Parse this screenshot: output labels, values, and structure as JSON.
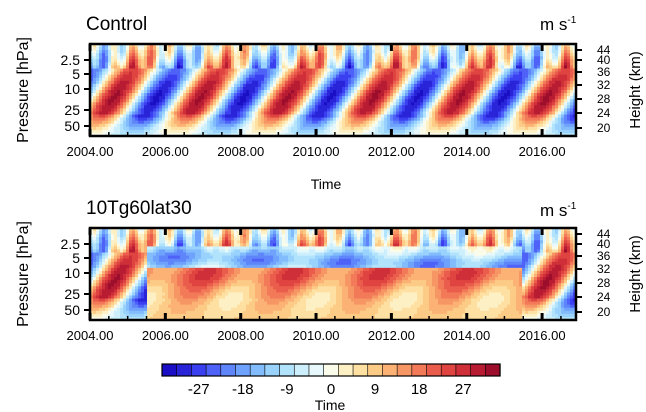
{
  "chart_data": {
    "type": "heatmap",
    "panels": [
      {
        "title": "Control",
        "units": "m s",
        "units_exponent": "-1",
        "xlabel": "Time",
        "ylabel": "Pressure [hPa]",
        "y2label": "Height (km)",
        "xlim": [
          2004.0,
          2016.9
        ],
        "x_ticks": [
          "2004.00",
          "2006.00",
          "2008.00",
          "2010.00",
          "2012.00",
          "2014.00",
          "2016.00"
        ],
        "y_ticks": [
          "2.5",
          "5",
          "10",
          "25",
          "50"
        ],
        "y2_ticks": [
          "44",
          "40",
          "36",
          "32",
          "28",
          "24",
          "20"
        ],
        "qbo_period_years": 2.3,
        "qbo_phase_year": 2005.0,
        "descent_years": 1.6,
        "amplitude": 28
      },
      {
        "title": "10Tg60lat30",
        "units": "m s",
        "units_exponent": "-1",
        "xlabel": "Time",
        "ylabel": "Pressure [hPa]",
        "y2label": "Height (km)",
        "xlim": [
          2004.0,
          2016.9
        ],
        "x_ticks": [
          "2004.00",
          "2006.00",
          "2008.00",
          "2010.00",
          "2012.00",
          "2014.00",
          "2016.00"
        ],
        "y_ticks": [
          "2.5",
          "5",
          "10",
          "25",
          "50"
        ],
        "y2_ticks": [
          "44",
          "40",
          "36",
          "32",
          "28",
          "24",
          "20"
        ],
        "qbo_period_years": 2.3,
        "qbo_phase_year": 2005.0,
        "descent_years": 1.6,
        "amplitude": 28,
        "disrupted_years": [
          2005.5,
          2015.5
        ]
      }
    ],
    "colorbar": {
      "label": "Time",
      "tick_labels": [
        "-27",
        "-18",
        "-9",
        "0",
        "9",
        "18",
        "27"
      ],
      "levels": [
        -33,
        -30,
        -27,
        -24,
        -21,
        -18,
        -15,
        -12,
        -9,
        -6,
        -3,
        0,
        3,
        6,
        9,
        12,
        15,
        18,
        21,
        24,
        27,
        30,
        33
      ],
      "colors": [
        "#1a0fc4",
        "#2a24d8",
        "#3a3ff0",
        "#4e62f8",
        "#5f85fa",
        "#6fa2fc",
        "#82bcfd",
        "#98d2fd",
        "#b2e3fd",
        "#cdeffc",
        "#e6f8fb",
        "#fbfbea",
        "#fdf0c4",
        "#fde0a2",
        "#fccb86",
        "#fbb274",
        "#f79665",
        "#f27a58",
        "#ea5d4c",
        "#df4441",
        "#cf2f39",
        "#b81c33",
        "#9c0e2c"
      ]
    }
  }
}
